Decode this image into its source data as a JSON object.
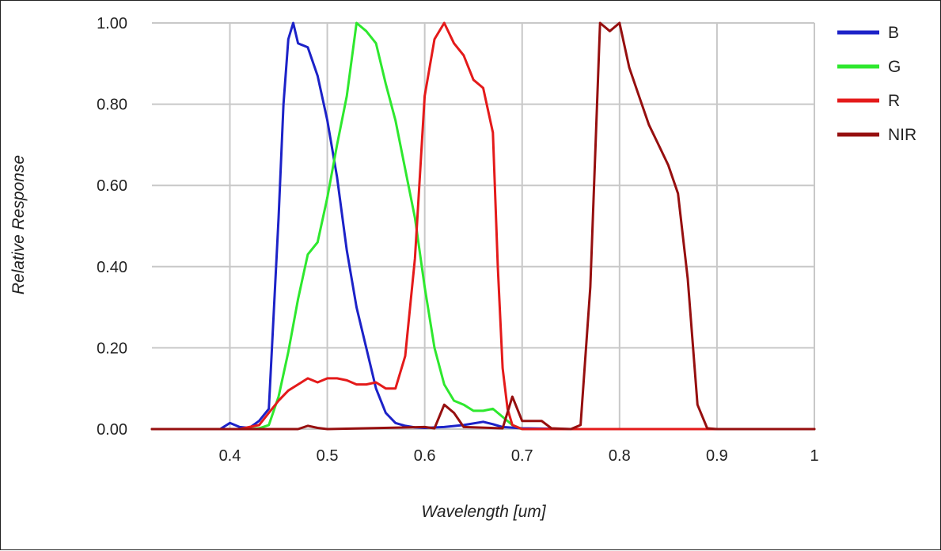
{
  "chart_data": {
    "type": "line",
    "title": "",
    "xlabel": "Wavelength [um]",
    "ylabel": "Relative Response",
    "xlim": [
      0.32,
      1.0
    ],
    "ylim": [
      0.0,
      1.0
    ],
    "grid": true,
    "legend_position": "right",
    "x_ticks": [
      {
        "value": 0.4,
        "label": "0.4"
      },
      {
        "value": 0.5,
        "label": "0.5"
      },
      {
        "value": 0.6,
        "label": "0.6"
      },
      {
        "value": 0.7,
        "label": "0.7"
      },
      {
        "value": 0.8,
        "label": "0.8"
      },
      {
        "value": 0.9,
        "label": "0.9"
      },
      {
        "value": 1.0,
        "label": "1"
      }
    ],
    "y_ticks": [
      {
        "value": 0.0,
        "label": "0.00"
      },
      {
        "value": 0.2,
        "label": "0.20"
      },
      {
        "value": 0.4,
        "label": "0.40"
      },
      {
        "value": 0.6,
        "label": "0.60"
      },
      {
        "value": 0.8,
        "label": "0.80"
      },
      {
        "value": 1.0,
        "label": "1.00"
      }
    ],
    "series": [
      {
        "name": "B",
        "color": "#1c22c8",
        "points": [
          [
            0.32,
            0.0
          ],
          [
            0.39,
            0.0
          ],
          [
            0.4,
            0.015
          ],
          [
            0.41,
            0.005
          ],
          [
            0.42,
            0.003
          ],
          [
            0.43,
            0.02
          ],
          [
            0.44,
            0.05
          ],
          [
            0.45,
            0.52
          ],
          [
            0.455,
            0.8
          ],
          [
            0.46,
            0.96
          ],
          [
            0.465,
            1.0
          ],
          [
            0.47,
            0.95
          ],
          [
            0.48,
            0.94
          ],
          [
            0.49,
            0.87
          ],
          [
            0.5,
            0.76
          ],
          [
            0.51,
            0.62
          ],
          [
            0.52,
            0.44
          ],
          [
            0.53,
            0.3
          ],
          [
            0.54,
            0.2
          ],
          [
            0.55,
            0.1
          ],
          [
            0.56,
            0.04
          ],
          [
            0.57,
            0.015
          ],
          [
            0.58,
            0.008
          ],
          [
            0.59,
            0.004
          ],
          [
            0.6,
            0.003
          ],
          [
            0.62,
            0.005
          ],
          [
            0.64,
            0.01
          ],
          [
            0.66,
            0.018
          ],
          [
            0.67,
            0.012
          ],
          [
            0.68,
            0.005
          ],
          [
            0.7,
            0.002
          ],
          [
            0.75,
            0.0
          ],
          [
            1.0,
            0.0
          ]
        ]
      },
      {
        "name": "G",
        "color": "#2ee82e",
        "points": [
          [
            0.32,
            0.0
          ],
          [
            0.42,
            0.0
          ],
          [
            0.43,
            0.002
          ],
          [
            0.44,
            0.01
          ],
          [
            0.45,
            0.08
          ],
          [
            0.46,
            0.19
          ],
          [
            0.47,
            0.32
          ],
          [
            0.48,
            0.43
          ],
          [
            0.49,
            0.46
          ],
          [
            0.5,
            0.57
          ],
          [
            0.51,
            0.7
          ],
          [
            0.52,
            0.82
          ],
          [
            0.53,
            1.0
          ],
          [
            0.54,
            0.98
          ],
          [
            0.55,
            0.95
          ],
          [
            0.56,
            0.85
          ],
          [
            0.57,
            0.76
          ],
          [
            0.58,
            0.64
          ],
          [
            0.59,
            0.52
          ],
          [
            0.6,
            0.35
          ],
          [
            0.61,
            0.2
          ],
          [
            0.62,
            0.11
          ],
          [
            0.63,
            0.07
          ],
          [
            0.64,
            0.06
          ],
          [
            0.65,
            0.045
          ],
          [
            0.66,
            0.045
          ],
          [
            0.67,
            0.05
          ],
          [
            0.68,
            0.03
          ],
          [
            0.69,
            0.01
          ],
          [
            0.7,
            0.0
          ],
          [
            1.0,
            0.0
          ]
        ]
      },
      {
        "name": "R",
        "color": "#e41a1a",
        "points": [
          [
            0.32,
            0.0
          ],
          [
            0.41,
            0.0
          ],
          [
            0.42,
            0.005
          ],
          [
            0.43,
            0.01
          ],
          [
            0.44,
            0.04
          ],
          [
            0.45,
            0.07
          ],
          [
            0.46,
            0.095
          ],
          [
            0.47,
            0.11
          ],
          [
            0.48,
            0.125
          ],
          [
            0.49,
            0.115
          ],
          [
            0.5,
            0.125
          ],
          [
            0.51,
            0.125
          ],
          [
            0.52,
            0.12
          ],
          [
            0.53,
            0.11
          ],
          [
            0.54,
            0.11
          ],
          [
            0.55,
            0.115
          ],
          [
            0.56,
            0.1
          ],
          [
            0.57,
            0.1
          ],
          [
            0.58,
            0.18
          ],
          [
            0.59,
            0.42
          ],
          [
            0.6,
            0.82
          ],
          [
            0.61,
            0.96
          ],
          [
            0.62,
            1.0
          ],
          [
            0.63,
            0.95
          ],
          [
            0.64,
            0.92
          ],
          [
            0.65,
            0.86
          ],
          [
            0.66,
            0.84
          ],
          [
            0.67,
            0.73
          ],
          [
            0.675,
            0.4
          ],
          [
            0.68,
            0.15
          ],
          [
            0.685,
            0.05
          ],
          [
            0.69,
            0.01
          ],
          [
            0.7,
            0.0
          ],
          [
            1.0,
            0.0
          ]
        ]
      },
      {
        "name": "NIR",
        "color": "#960f0f",
        "points": [
          [
            0.32,
            0.0
          ],
          [
            0.47,
            0.0
          ],
          [
            0.48,
            0.008
          ],
          [
            0.49,
            0.003
          ],
          [
            0.5,
            0.0
          ],
          [
            0.6,
            0.005
          ],
          [
            0.61,
            0.002
          ],
          [
            0.62,
            0.06
          ],
          [
            0.63,
            0.04
          ],
          [
            0.64,
            0.005
          ],
          [
            0.68,
            0.002
          ],
          [
            0.69,
            0.08
          ],
          [
            0.7,
            0.02
          ],
          [
            0.71,
            0.02
          ],
          [
            0.72,
            0.02
          ],
          [
            0.73,
            0.002
          ],
          [
            0.75,
            0.0
          ],
          [
            0.76,
            0.01
          ],
          [
            0.77,
            0.35
          ],
          [
            0.78,
            1.0
          ],
          [
            0.79,
            0.98
          ],
          [
            0.8,
            1.0
          ],
          [
            0.81,
            0.89
          ],
          [
            0.82,
            0.82
          ],
          [
            0.83,
            0.75
          ],
          [
            0.84,
            0.7
          ],
          [
            0.85,
            0.65
          ],
          [
            0.86,
            0.58
          ],
          [
            0.87,
            0.37
          ],
          [
            0.88,
            0.06
          ],
          [
            0.89,
            0.002
          ],
          [
            0.9,
            0.0
          ],
          [
            1.0,
            0.0
          ]
        ]
      }
    ]
  }
}
